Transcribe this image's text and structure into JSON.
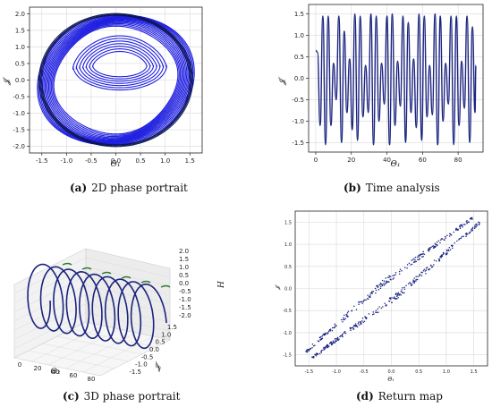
{
  "chart_data": [
    {
      "id": "a",
      "type": "line",
      "caption_letter": "(a)",
      "caption_text": "2D phase portrait",
      "xlabel": "Θ₁",
      "ylabel": "𝓙",
      "xlim": [
        -1.75,
        1.75
      ],
      "ylim": [
        -2.2,
        2.2
      ],
      "xticks": [
        "-1.5",
        "-1.0",
        "-0.5",
        "0.0",
        "0.5",
        "1.0",
        "1.5"
      ],
      "yticks": [
        "-2.0",
        "-1.5",
        "-1.0",
        "-0.5",
        "0.0",
        "0.5",
        "1.0",
        "1.5",
        "2.0"
      ],
      "grid": true,
      "series": [
        {
          "color": "#1f1fe0",
          "description_points": "dense closed orbits; outer ring radius ~1.55 (x) by ~2.0 (y), inner kidney loops centred near (0.1,0.4)"
        }
      ],
      "outer_loops": {
        "count": 14,
        "rx": [
          1.25,
          1.58
        ],
        "ry": [
          1.55,
          2.05
        ],
        "cx": 0.0,
        "cy": 0.0
      },
      "inner_loops": {
        "count": 7,
        "rx": [
          0.55,
          0.95
        ],
        "ry": [
          0.35,
          0.75
        ],
        "cx": 0.08,
        "cy": 0.45
      }
    },
    {
      "id": "b",
      "type": "line",
      "caption_letter": "(b)",
      "caption_text": "Time analysis",
      "xlabel": "Θ₁",
      "ylabel": "𝓙",
      "xlim": [
        -4,
        94
      ],
      "ylim": [
        -1.72,
        1.72
      ],
      "xticks": [
        "0",
        "20",
        "40",
        "60",
        "80"
      ],
      "xtick_values": [
        0,
        20,
        40,
        60,
        80
      ],
      "yticks": [
        "-1.5",
        "-1.0",
        "-0.5",
        "0.0",
        "0.5",
        "1.0",
        "1.5"
      ],
      "ytick_values": [
        -1.5,
        -1.0,
        -0.5,
        0.0,
        0.5,
        1.0,
        1.5
      ],
      "grid": true,
      "series": [
        {
          "color": "#1a237e",
          "x": [
            0,
            1,
            2.5,
            4,
            5.5,
            7,
            8.5,
            10,
            11.5,
            13,
            14.5,
            16,
            17.5,
            19,
            20.5,
            22,
            23.5,
            25,
            26.5,
            28,
            29.5,
            31,
            32.5,
            34,
            35.5,
            37,
            38.5,
            40,
            41.5,
            43,
            44.5,
            46,
            47.5,
            49,
            50.5,
            52,
            53.5,
            55,
            56.5,
            58,
            59.5,
            61,
            62.5,
            64,
            65.5,
            67,
            68.5,
            70,
            71.5,
            73,
            74.5,
            76,
            77.5,
            79,
            80.5,
            82,
            83.5,
            85,
            86.5,
            88,
            89.5,
            90
          ],
          "y": [
            0.65,
            0.6,
            -1.1,
            1.45,
            -1.55,
            1.45,
            -1.1,
            0.35,
            -0.5,
            1.45,
            -1.5,
            1.1,
            -0.8,
            0.45,
            -1.2,
            1.5,
            -1.45,
            1.45,
            -0.9,
            0.3,
            -0.8,
            1.5,
            -1.55,
            1.45,
            -1.0,
            0.35,
            -0.6,
            1.45,
            -1.55,
            1.5,
            -1.1,
            0.4,
            -0.65,
            1.45,
            -1.5,
            1.3,
            -0.8,
            0.45,
            -1.15,
            1.5,
            -1.45,
            1.45,
            -0.9,
            0.3,
            -0.85,
            1.5,
            -1.55,
            1.45,
            -1.0,
            0.35,
            -0.6,
            1.45,
            -1.55,
            1.45,
            -1.1,
            0.4,
            -0.7,
            1.45,
            -1.5,
            1.2,
            -0.8,
            0.3
          ]
        }
      ]
    },
    {
      "id": "c",
      "type": "line",
      "caption_letter": "(c)",
      "caption_text": "3D phase portrait",
      "xlabel": "Θ₂",
      "ylabel": "𝓙",
      "zlabel": "H",
      "xticks": [
        "0",
        "20",
        "40",
        "60",
        "80"
      ],
      "yticks": [
        "-1.5",
        "-1.0",
        "-0.5",
        "0.0",
        "0.5",
        "1.0",
        "1.5"
      ],
      "zticks": [
        "-2.0",
        "-1.5",
        "-1.0",
        "-0.5",
        "0.0",
        "0.5",
        "1.0",
        "1.5",
        "2.0"
      ],
      "grid": true,
      "series": [
        {
          "color": "#1a237e",
          "accent": "#2e7d32",
          "turns": 9
        }
      ]
    },
    {
      "id": "d",
      "type": "scatter",
      "caption_letter": "(d)",
      "caption_text": "Return map",
      "xlabel": "Θ₁",
      "ylabel": "𝓙",
      "xlim": [
        -1.75,
        1.75
      ],
      "ylim": [
        -1.75,
        1.75
      ],
      "xticks": [
        "-1.5",
        "-1.0",
        "-0.5",
        "0.0",
        "0.5",
        "1.0",
        "1.5"
      ],
      "yticks": [
        "-1.5",
        "-1.0",
        "-0.5",
        "0.0",
        "0.5",
        "1.0",
        "1.5"
      ],
      "grid": true,
      "series": [
        {
          "color": "#1a237e",
          "description": "points along diagonal band y ≈ x from (-1.5,-1.5) to (1.55,1.55), band width ~0.25"
        }
      ]
    }
  ]
}
